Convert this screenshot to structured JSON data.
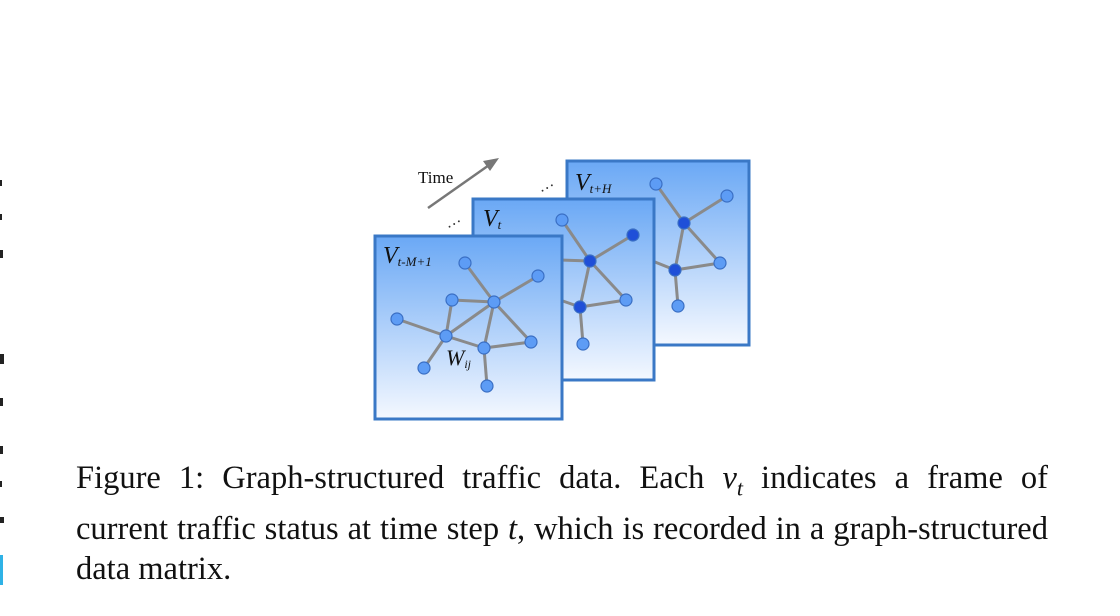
{
  "figure": {
    "time_label": "Time",
    "dots": "…",
    "frames": [
      {
        "id": "back",
        "label_main": "V",
        "label_sub": "t+H"
      },
      {
        "id": "mid",
        "label_main": "V",
        "label_sub": "t"
      },
      {
        "id": "front",
        "label_main": "V",
        "label_sub": "t-M+1"
      }
    ],
    "edge_label_main": "W",
    "edge_label_sub": "ij",
    "colors": {
      "frame_border": "#3a78c6",
      "frame_top": "#6aa8f5",
      "frame_bottom": "#f4f8ff",
      "node_fill": "#5d9cf5",
      "node_stroke": "#3a6fc4",
      "node_dark": "#1f4fd8",
      "edge": "#8a8a8a",
      "arrow": "#777777"
    }
  },
  "caption": {
    "prefix": "Figure 1: Graph-structured traffic data.  Each ",
    "var_v": "v",
    "var_v_sub": "t",
    "middle": " indicates a frame of current traffic status at time step ",
    "var_t": "t",
    "suffix": ", which is recorded in a graph-structured data matrix."
  }
}
